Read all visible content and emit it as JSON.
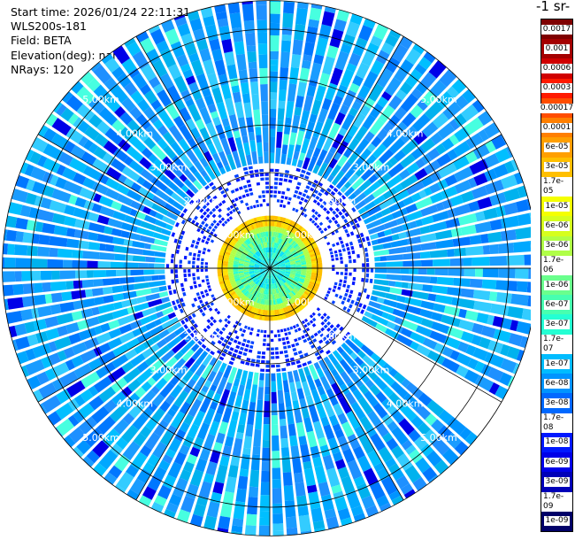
{
  "info": {
    "start_time": "Start time: 2026/01/24 22:11:31",
    "instrument": "WLS200s-181",
    "field": "Field: BETA",
    "elevation": "Elevation(deg): nan",
    "nrays": "NRays: 120"
  },
  "colorbar": {
    "title": "-1 sr-",
    "ticks": [
      "0.0017",
      "0.001",
      "0.0006",
      "0.0003",
      "0.00017",
      "0.0001",
      "6e-05",
      "3e-05",
      "1.7e-05",
      "1e-05",
      "6e-06",
      "3e-06",
      "1.7e-06",
      "1e-06",
      "6e-07",
      "3e-07",
      "1.7e-07",
      "1e-07",
      "6e-08",
      "3e-08",
      "1.7e-08",
      "1e-08",
      "6e-09",
      "3e-09",
      "1.7e-09",
      "1e-09"
    ],
    "colors": [
      "#7f0000",
      "#a40000",
      "#d00000",
      "#ff1a00",
      "#ff4d00",
      "#ff7f00",
      "#ff9f00",
      "#ffbf00",
      "#ffdf00",
      "#f5ff00",
      "#d6ff1e",
      "#b0ff47",
      "#8dff6a",
      "#6aff8d",
      "#47ffb0",
      "#24ffd3",
      "#00e4f8",
      "#00bcff",
      "#0094ff",
      "#0068ff",
      "#0040ff",
      "#0018ff",
      "#0000e8",
      "#0000b8",
      "#000090",
      "#000068"
    ]
  },
  "chart_data": {
    "type": "heatmap",
    "projection": "polar (PPI scan)",
    "field": "BETA",
    "n_rays": 120,
    "range_rings_km": [
      1,
      2,
      3,
      4,
      5
    ],
    "range_labels": [
      "1.00km",
      "2.00km",
      "3.00km",
      "4.00km",
      "5.00km"
    ],
    "max_range_km": 5.6,
    "blanked_sector_deg": [
      120,
      130
    ],
    "colorscale": "log10 jet",
    "colorscale_range": [
      1e-09,
      0.0017
    ],
    "typical_values": {
      "near_field_ring_0_to_1km": "1.7e-06 to 1.7e-05",
      "mid_to_far_range": "3e-08 to 1e-07"
    }
  }
}
